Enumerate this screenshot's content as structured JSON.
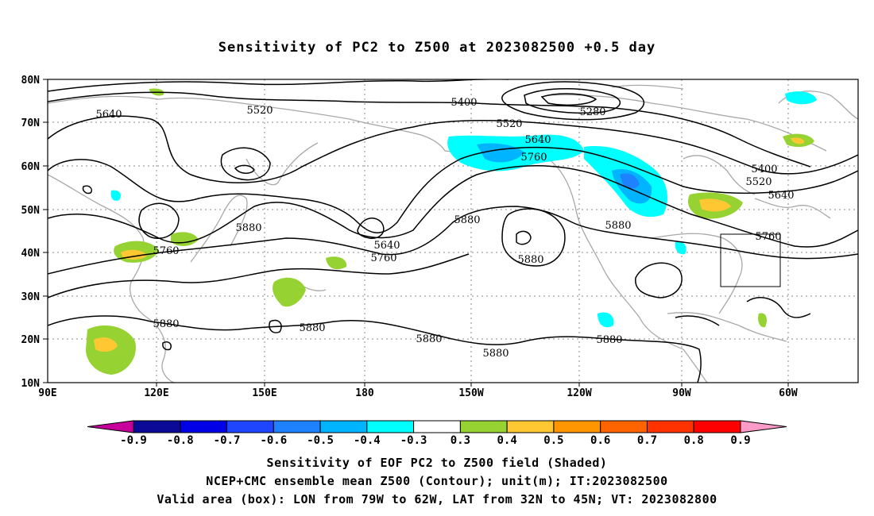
{
  "title": "Sensitivity of PC2 to Z500 at 2023082500 +0.5 day",
  "lat_ticks": [
    "80N",
    "70N",
    "60N",
    "50N",
    "40N",
    "30N",
    "20N",
    "10N"
  ],
  "lon_ticks": [
    "90E",
    "120E",
    "150E",
    "180",
    "150W",
    "120W",
    "90W",
    "60W"
  ],
  "contour_labels": [
    "5640",
    "5520",
    "5400",
    "5280",
    "5520",
    "5640",
    "5760",
    "5400",
    "5520",
    "5640",
    "5760",
    "5880",
    "5640",
    "5760",
    "5880",
    "5760",
    "5880",
    "5880",
    "5880",
    "5880",
    "5880",
    "5880",
    "5880"
  ],
  "colorbar": {
    "labels": [
      "-0.9",
      "-0.8",
      "-0.7",
      "-0.6",
      "-0.5",
      "-0.4",
      "-0.3",
      "0.3",
      "0.4",
      "0.5",
      "0.6",
      "0.7",
      "0.8",
      "0.9"
    ],
    "colors": [
      "#0a0a96",
      "#0000e6",
      "#1e46ff",
      "#1e82ff",
      "#00b4ff",
      "#00ffff",
      "#ffffff",
      "#96d232",
      "#ffc832",
      "#ff9600",
      "#ff6400",
      "#ff3200",
      "#ff0000"
    ],
    "low_color": "#c8009b",
    "high_color": "#ff9bc8"
  },
  "captions": [
    "Sensitivity of EOF PC2 to Z500 field (Shaded)",
    "NCEP+CMC ensemble mean Z500 (Contour); unit(m); IT:2023082500",
    "Valid area (box): LON from 79W to 62W, LAT from 32N to 45N; VT: 2023082800"
  ]
}
